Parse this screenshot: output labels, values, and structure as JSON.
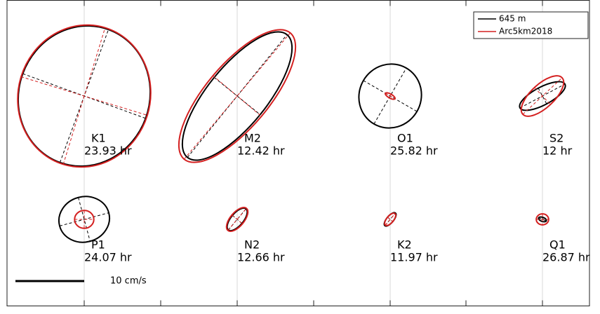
{
  "chart_data": {
    "type": "ellipse",
    "categories": [
      "K1",
      "M2",
      "O1",
      "S2",
      "P1",
      "N2",
      "K2",
      "Q1"
    ],
    "periods": [
      "23.93 hr",
      "12.42 hr",
      "25.82 hr",
      "12 hr",
      "24.07 hr",
      "12.66 hr",
      "11.97 hr",
      "26.87 hr"
    ],
    "series": [
      {
        "name": "645 m",
        "color": "#000000",
        "major": [
          10.3,
          11.5,
          4.7,
          3.7,
          3.7,
          2.0,
          1.2,
          0.6
        ],
        "minor": [
          9.5,
          4.3,
          4.5,
          1.3,
          3.3,
          0.9,
          0.5,
          0.3
        ],
        "angle": [
          70,
          51,
          60,
          28,
          15,
          50,
          50,
          -20
        ]
      },
      {
        "name": "Arc5km2018",
        "color": "#d42020",
        "major": [
          10.4,
          12.0,
          0.8,
          3.9,
          1.4,
          2.1,
          1.1,
          0.9
        ],
        "minor": [
          9.6,
          4.6,
          0.3,
          1.7,
          1.3,
          1.0,
          0.5,
          0.8
        ],
        "angle": [
          73,
          50,
          -30,
          43,
          0,
          50,
          50,
          0
        ]
      }
    ],
    "scale_bar": {
      "value": 10,
      "label": "10 cm/s"
    },
    "legend_position": "upper right"
  }
}
